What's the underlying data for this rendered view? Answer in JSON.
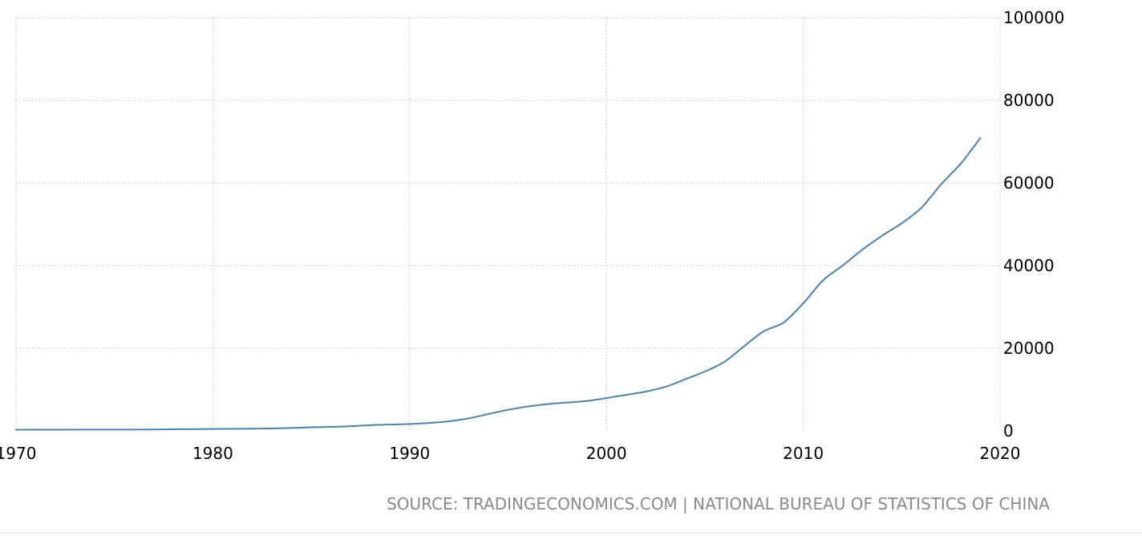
{
  "chart_data": {
    "type": "line",
    "title": "",
    "xlabel": "",
    "ylabel": "",
    "xlim": [
      1970,
      2020
    ],
    "ylim": [
      0,
      100000
    ],
    "x_ticks": [
      1970,
      1980,
      1990,
      2000,
      2010,
      2020
    ],
    "y_ticks": [
      0,
      20000,
      40000,
      60000,
      80000,
      100000
    ],
    "y_axis_position": "right",
    "grid": true,
    "legend": "none",
    "line_color": "#4a83b0",
    "series": [
      {
        "x": [
          1970,
          1971,
          1972,
          1973,
          1974,
          1975,
          1976,
          1977,
          1978,
          1979,
          1980,
          1981,
          1982,
          1983,
          1984,
          1985,
          1986,
          1987,
          1988,
          1989,
          1990,
          1991,
          1992,
          1993,
          1994,
          1995,
          1996,
          1997,
          1998,
          1999,
          2000,
          2001,
          2002,
          2003,
          2004,
          2005,
          2006,
          2007,
          2008,
          2009,
          2010,
          2011,
          2012,
          2013,
          2014,
          2015,
          2016,
          2017,
          2018,
          2019
        ],
        "y": [
          275,
          288,
          292,
          309,
          310,
          327,
          316,
          339,
          385,
          423,
          468,
          497,
          533,
          589,
          702,
          866,
          973,
          1123,
          1378,
          1536,
          1663,
          1912,
          2334,
          3027,
          4081,
          5091,
          5898,
          6481,
          6860,
          7229,
          7942,
          8717,
          9506,
          10666,
          12487,
          14368,
          16738,
          20505,
          24121,
          26222,
          30876,
          36403,
          40007,
          43852,
          47203,
          50251,
          53980,
          59660,
          64644,
          70892
        ]
      }
    ],
    "source": "SOURCE: TRADINGECONOMICS.COM | NATIONAL BUREAU OF STATISTICS OF CHINA"
  }
}
